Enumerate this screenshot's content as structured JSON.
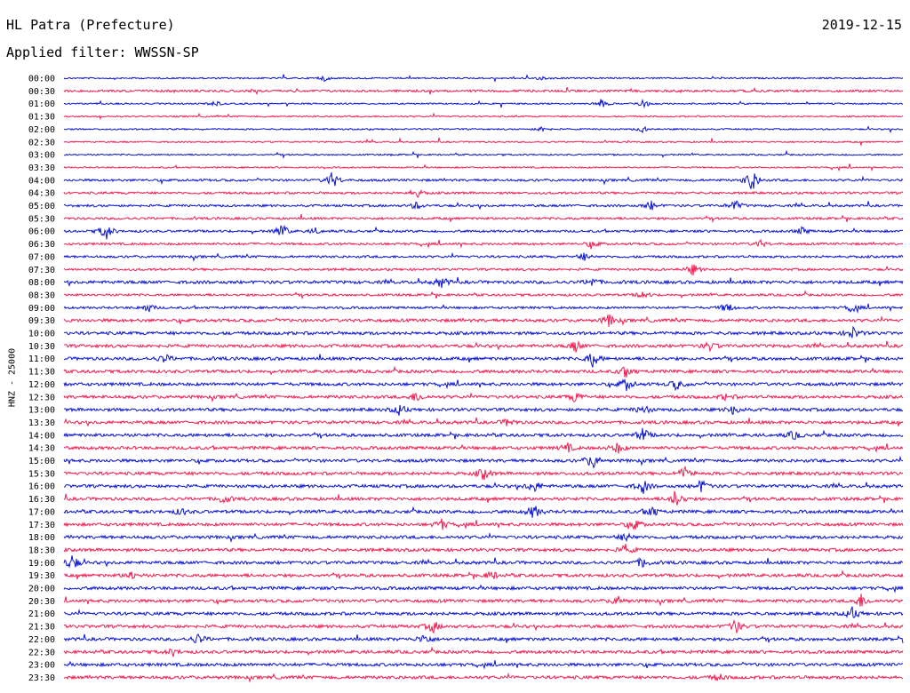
{
  "header": {
    "station": "HL Patra (Prefecture)",
    "date": "2019-12-15",
    "filter": "Applied filter: WWSSN-SP"
  },
  "channel_label": "HNZ - 25000",
  "colors": {
    "trace_a": "#0a14d2",
    "trace_b": "#f01e50",
    "text": "#000000",
    "background": "#ffffff"
  },
  "chart_data": {
    "type": "line",
    "title": "HL Patra (Prefecture)",
    "subtitle": "Applied filter: WWSSN-SP",
    "ylabel": "HNZ - 25000",
    "row_labels": [
      "00:00",
      "00:30",
      "01:00",
      "01:30",
      "02:00",
      "02:30",
      "03:00",
      "03:30",
      "04:00",
      "04:30",
      "05:00",
      "05:30",
      "06:00",
      "06:30",
      "07:00",
      "07:30",
      "08:00",
      "08:30",
      "09:00",
      "09:30",
      "10:00",
      "10:30",
      "11:00",
      "11:30",
      "12:00",
      "12:30",
      "13:00",
      "13:30",
      "14:00",
      "14:30",
      "15:00",
      "15:30",
      "16:00",
      "16:30",
      "17:00",
      "17:30",
      "18:00",
      "18:30",
      "19:00",
      "19:30",
      "20:00",
      "20:30",
      "21:00",
      "21:30",
      "22:00",
      "22:30",
      "23:00",
      "23:30"
    ],
    "series": [
      {
        "name": "",
        "color": "#0a14d2",
        "rows": "even"
      },
      {
        "name": "",
        "color": "#f01e50",
        "rows": "odd"
      }
    ],
    "noise_level": [
      1,
      2,
      1,
      1,
      1,
      1,
      1,
      1,
      2,
      2,
      2,
      2,
      2,
      2,
      2,
      2,
      3,
      2,
      2,
      3,
      3,
      3,
      3,
      3,
      3,
      3,
      3,
      3,
      3,
      3,
      3,
      3,
      3,
      3,
      3,
      3,
      3,
      3,
      3,
      3,
      3,
      3,
      3,
      3,
      3,
      3,
      3,
      3
    ],
    "events": [
      {
        "row": "00:00",
        "t": 0.31,
        "amp": 3
      },
      {
        "row": "00:00",
        "t": 0.57,
        "amp": 2
      },
      {
        "row": "01:00",
        "t": 0.18,
        "amp": 3
      },
      {
        "row": "01:00",
        "t": 0.64,
        "amp": 5
      },
      {
        "row": "01:00",
        "t": 0.69,
        "amp": 5
      },
      {
        "row": "02:00",
        "t": 0.57,
        "amp": 3
      },
      {
        "row": "02:00",
        "t": 0.69,
        "amp": 3
      },
      {
        "row": "04:00",
        "t": 0.32,
        "amp": 10
      },
      {
        "row": "04:00",
        "t": 0.82,
        "amp": 14
      },
      {
        "row": "04:30",
        "t": 0.42,
        "amp": 5
      },
      {
        "row": "05:00",
        "t": 0.42,
        "amp": 4
      },
      {
        "row": "05:00",
        "t": 0.7,
        "amp": 5
      },
      {
        "row": "05:00",
        "t": 0.8,
        "amp": 6
      },
      {
        "row": "06:00",
        "t": 0.05,
        "amp": 10
      },
      {
        "row": "06:00",
        "t": 0.26,
        "amp": 8
      },
      {
        "row": "06:00",
        "t": 0.3,
        "amp": 3
      },
      {
        "row": "06:00",
        "t": 0.88,
        "amp": 4
      },
      {
        "row": "06:30",
        "t": 0.63,
        "amp": 4
      },
      {
        "row": "06:30",
        "t": 0.83,
        "amp": 4
      },
      {
        "row": "07:00",
        "t": 0.62,
        "amp": 4
      },
      {
        "row": "07:30",
        "t": 0.75,
        "amp": 6
      },
      {
        "row": "08:00",
        "t": 0.45,
        "amp": 6
      },
      {
        "row": "08:00",
        "t": 0.63,
        "amp": 5
      },
      {
        "row": "08:30",
        "t": 0.69,
        "amp": 4
      },
      {
        "row": "09:00",
        "t": 0.1,
        "amp": 5
      },
      {
        "row": "09:00",
        "t": 0.79,
        "amp": 6
      },
      {
        "row": "09:00",
        "t": 0.94,
        "amp": 5
      },
      {
        "row": "09:30",
        "t": 0.65,
        "amp": 7
      },
      {
        "row": "10:00",
        "t": 0.94,
        "amp": 7
      },
      {
        "row": "10:30",
        "t": 0.61,
        "amp": 7
      },
      {
        "row": "10:30",
        "t": 0.77,
        "amp": 5
      },
      {
        "row": "11:00",
        "t": 0.12,
        "amp": 5
      },
      {
        "row": "11:00",
        "t": 0.63,
        "amp": 9
      },
      {
        "row": "11:30",
        "t": 0.67,
        "amp": 7
      },
      {
        "row": "12:00",
        "t": 0.67,
        "amp": 7
      },
      {
        "row": "12:00",
        "t": 0.73,
        "amp": 6
      },
      {
        "row": "12:30",
        "t": 0.42,
        "amp": 6
      },
      {
        "row": "12:30",
        "t": 0.61,
        "amp": 6
      },
      {
        "row": "12:30",
        "t": 0.79,
        "amp": 4
      },
      {
        "row": "13:00",
        "t": 0.4,
        "amp": 6
      },
      {
        "row": "13:00",
        "t": 0.69,
        "amp": 6
      },
      {
        "row": "13:00",
        "t": 0.8,
        "amp": 7
      },
      {
        "row": "13:30",
        "t": 0.53,
        "amp": 5
      },
      {
        "row": "14:00",
        "t": 0.69,
        "amp": 8
      },
      {
        "row": "14:00",
        "t": 0.87,
        "amp": 5
      },
      {
        "row": "14:30",
        "t": 0.6,
        "amp": 5
      },
      {
        "row": "14:30",
        "t": 0.66,
        "amp": 6
      },
      {
        "row": "15:00",
        "t": 0.63,
        "amp": 9
      },
      {
        "row": "15:30",
        "t": 0.5,
        "amp": 7
      },
      {
        "row": "15:30",
        "t": 0.74,
        "amp": 7
      },
      {
        "row": "16:00",
        "t": 0.56,
        "amp": 7
      },
      {
        "row": "16:00",
        "t": 0.69,
        "amp": 8
      },
      {
        "row": "16:00",
        "t": 0.76,
        "amp": 7
      },
      {
        "row": "16:30",
        "t": 0.19,
        "amp": 5
      },
      {
        "row": "16:30",
        "t": 0.73,
        "amp": 12
      },
      {
        "row": "17:00",
        "t": 0.14,
        "amp": 4
      },
      {
        "row": "17:00",
        "t": 0.56,
        "amp": 8
      },
      {
        "row": "17:00",
        "t": 0.7,
        "amp": 7
      },
      {
        "row": "17:30",
        "t": 0.45,
        "amp": 6
      },
      {
        "row": "17:30",
        "t": 0.68,
        "amp": 6
      },
      {
        "row": "18:00",
        "t": 0.67,
        "amp": 5
      },
      {
        "row": "18:30",
        "t": 0.67,
        "amp": 6
      },
      {
        "row": "19:00",
        "t": 0.01,
        "amp": 9
      },
      {
        "row": "19:00",
        "t": 0.69,
        "amp": 6
      },
      {
        "row": "19:30",
        "t": 0.08,
        "amp": 5
      },
      {
        "row": "19:30",
        "t": 0.51,
        "amp": 5
      },
      {
        "row": "20:30",
        "t": 0.66,
        "amp": 5
      },
      {
        "row": "20:30",
        "t": 0.95,
        "amp": 8
      },
      {
        "row": "21:00",
        "t": 0.94,
        "amp": 7
      },
      {
        "row": "21:30",
        "t": 0.44,
        "amp": 7
      },
      {
        "row": "21:30",
        "t": 0.8,
        "amp": 8
      },
      {
        "row": "22:00",
        "t": 0.16,
        "amp": 6
      },
      {
        "row": "22:00",
        "t": 0.43,
        "amp": 6
      },
      {
        "row": "22:30",
        "t": 0.13,
        "amp": 4
      },
      {
        "row": "23:30",
        "t": 0.78,
        "amp": 4
      }
    ],
    "grid": false,
    "legend": "none"
  }
}
